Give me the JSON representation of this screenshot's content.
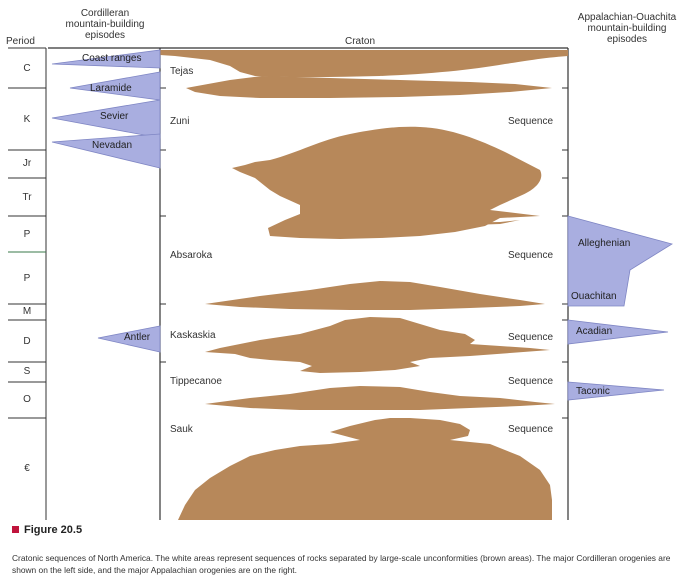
{
  "headers": {
    "period": "Period",
    "cordilleran": [
      "Cordilleran",
      "mountain-building",
      "episodes"
    ],
    "craton": "Craton",
    "appalachian": [
      "Appalachian-Ouachita",
      "mountain-building",
      "episodes"
    ]
  },
  "periods": [
    {
      "label": "C"
    },
    {
      "label": "K"
    },
    {
      "label": "Jr"
    },
    {
      "label": "Tr"
    },
    {
      "label": "P"
    },
    {
      "label": "P"
    },
    {
      "label": "M"
    },
    {
      "label": "D"
    },
    {
      "label": "S"
    },
    {
      "label": "O"
    },
    {
      "label": "€"
    }
  ],
  "sequences": [
    {
      "name": "Tejas",
      "suffix": ""
    },
    {
      "name": "Zuni",
      "suffix": "Sequence"
    },
    {
      "name": "Absaroka",
      "suffix": "Sequence"
    },
    {
      "name": "Kaskaskia",
      "suffix": "Sequence"
    },
    {
      "name": "Tippecanoe",
      "suffix": "Sequence"
    },
    {
      "name": "Sauk",
      "suffix": "Sequence"
    }
  ],
  "cordilleran_orogenies": [
    "Coast ranges",
    "Laramide",
    "Sevier",
    "Nevadan",
    "Antler"
  ],
  "appalachian_orogenies": [
    "Alleghenian",
    "Ouachitan",
    "Acadian",
    "Taconic"
  ],
  "colors": {
    "unconformity": "#b7885a",
    "orogeny": "#a9aee0",
    "orogeny_stroke": "#7f86c4",
    "lines": "#333333",
    "figure_square": "#c0143c"
  },
  "figure_label": "Figure 20.5",
  "caption": "Cratonic sequences of North America. The white areas represent sequences of rocks separated by large-scale unconformities (brown areas). The major Cordilleran orogenies are shown on the left side, and the major Appalachian orogenies are on the right."
}
